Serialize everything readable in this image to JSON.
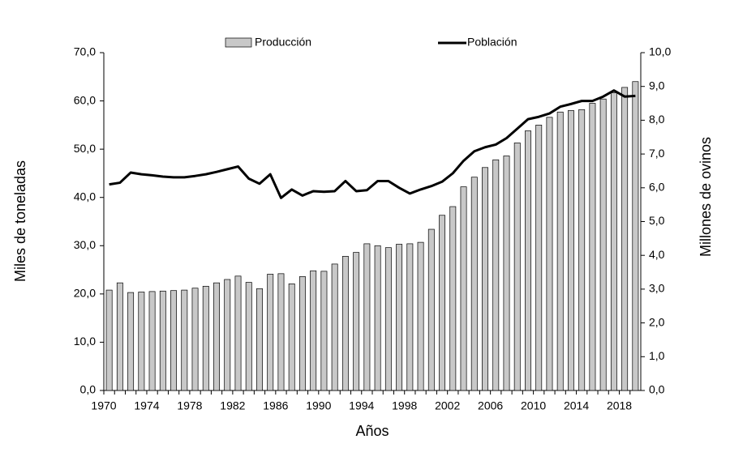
{
  "chart_data": {
    "type": "bar",
    "xlabel": "Años",
    "ylabel": "Miles de toneladas",
    "y2label": "Millones de ovinos",
    "categories": [
      "1970",
      null,
      null,
      null,
      "1974",
      null,
      null,
      null,
      "1978",
      null,
      null,
      null,
      "1982",
      null,
      null,
      null,
      "1986",
      null,
      null,
      null,
      "1990",
      null,
      null,
      null,
      "1994",
      null,
      null,
      null,
      "1998",
      null,
      null,
      null,
      "2002",
      null,
      null,
      null,
      "2006",
      null,
      null,
      null,
      "2010",
      null,
      null,
      null,
      "2014",
      null,
      null,
      null,
      "2018",
      null
    ],
    "series": [
      {
        "name": "Producción",
        "type": "bar",
        "color": "#c8c8c8",
        "values": [
          20.8,
          22.3,
          20.3,
          20.4,
          20.5,
          20.6,
          20.7,
          20.8,
          21.2,
          21.6,
          22.3,
          23.0,
          23.7,
          22.4,
          21.1,
          24.1,
          24.2,
          22.1,
          23.6,
          24.8,
          24.7,
          26.2,
          27.8,
          28.6,
          30.4,
          30.0,
          29.6,
          30.3,
          30.4,
          30.7,
          33.4,
          36.3,
          38.1,
          42.2,
          44.2,
          46.2,
          47.8,
          48.6,
          51.3,
          53.8,
          55.0,
          56.6,
          57.7,
          58.0,
          58.2,
          59.5,
          60.4,
          61.7,
          62.8,
          64.0
        ]
      },
      {
        "name": "Población",
        "type": "line",
        "color": "#000000",
        "axis": "y2",
        "values": [
          6.1,
          6.15,
          6.45,
          6.4,
          6.37,
          6.33,
          6.31,
          6.31,
          6.35,
          6.4,
          6.47,
          6.55,
          6.63,
          6.27,
          6.12,
          6.4,
          5.7,
          5.95,
          5.77,
          5.9,
          5.88,
          5.9,
          6.2,
          5.9,
          5.93,
          6.2,
          6.2,
          6.0,
          5.83,
          5.95,
          6.05,
          6.18,
          6.43,
          6.8,
          7.08,
          7.2,
          7.28,
          7.47,
          7.75,
          8.03,
          8.1,
          8.2,
          8.4,
          8.48,
          8.57,
          8.57,
          8.7,
          8.88,
          8.7,
          8.72
        ]
      }
    ],
    "ylim": [
      0,
      70
    ],
    "yticks": [
      {
        "value": 0,
        "label": "0,0"
      },
      {
        "value": 10,
        "label": "10,0"
      },
      {
        "value": 20,
        "label": "20,0"
      },
      {
        "value": 30,
        "label": "30,0"
      },
      {
        "value": 40,
        "label": "40,0"
      },
      {
        "value": 50,
        "label": "50,0"
      },
      {
        "value": 60,
        "label": "60,0"
      },
      {
        "value": 70,
        "label": "70,0"
      }
    ],
    "y2lim": [
      0,
      10
    ],
    "y2ticks": [
      {
        "value": 0,
        "label": "0,0"
      },
      {
        "value": 1,
        "label": "1,0"
      },
      {
        "value": 2,
        "label": "2,0"
      },
      {
        "value": 3,
        "label": "3,0"
      },
      {
        "value": 4,
        "label": "4,0"
      },
      {
        "value": 5,
        "label": "5,0"
      },
      {
        "value": 6,
        "label": "6,0"
      },
      {
        "value": 7,
        "label": "7,0"
      },
      {
        "value": 8,
        "label": "8,0"
      },
      {
        "value": 9,
        "label": "9,0"
      },
      {
        "value": 10,
        "label": "10,0"
      }
    ],
    "grid": false,
    "legend": "top"
  }
}
